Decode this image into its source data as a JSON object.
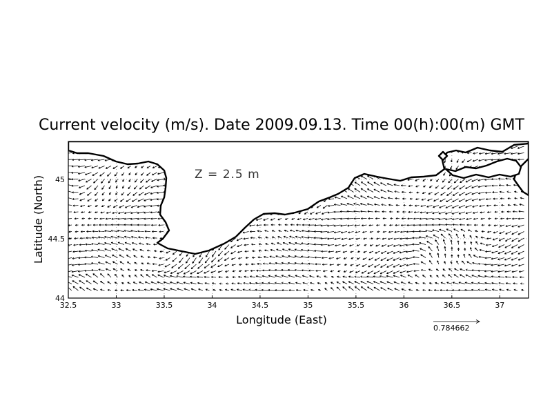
{
  "title": "Current velocity (m/s). Date 2009.09.13. Time 00(h):00(m) GMT",
  "depth_label": "Z = 2.5 m",
  "x_axis": {
    "label": "Longitude (East)",
    "range": [
      32.5,
      37.3
    ],
    "ticks": [
      32.5,
      33,
      33.5,
      34,
      34.5,
      35,
      35.5,
      36,
      36.5,
      37
    ],
    "tick_labels": [
      "32.5",
      "33",
      "33.5",
      "34",
      "34.5",
      "35",
      "35.5",
      "36",
      "36.5",
      "37"
    ]
  },
  "y_axis": {
    "label": "Latitude (North)",
    "range": [
      44.0,
      45.32
    ],
    "ticks": [
      44,
      44.5,
      45
    ],
    "tick_labels": [
      "44",
      "44.5",
      "45"
    ]
  },
  "grid": true,
  "reference_vector": {
    "label": "0.784662",
    "value": 0.784662,
    "units": "m/s"
  },
  "land_color": "#ffffff",
  "coast_color": "#000000",
  "vector_color": "#000000"
}
